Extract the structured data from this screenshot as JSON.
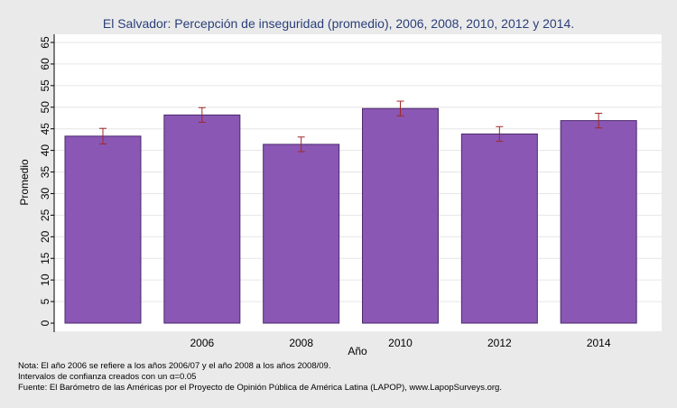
{
  "chart_data": {
    "type": "bar",
    "title": "El Salvador: Percepción de inseguridad (promedio), 2006, 2008, 2010, 2012 y 2014.",
    "xlabel": "Año",
    "ylabel": "Promedio",
    "categories": [
      "",
      "2006",
      "2008",
      "2010",
      "2012",
      "2014"
    ],
    "values": [
      43.3,
      48.2,
      41.4,
      49.7,
      43.8,
      46.9
    ],
    "ci_low": [
      41.5,
      46.5,
      39.7,
      48.0,
      42.1,
      45.2
    ],
    "ci_high": [
      45.1,
      49.9,
      43.1,
      51.4,
      45.5,
      48.6
    ],
    "ylim": [
      0,
      65
    ],
    "yticks": [
      0,
      5,
      10,
      15,
      20,
      25,
      30,
      35,
      40,
      45,
      50,
      55,
      60,
      65
    ],
    "grid": true,
    "legend": "none",
    "colors": {
      "bar_fill": "#8a57b4",
      "bar_stroke": "#4b2a6e",
      "error_bar": "#a02828",
      "plot_bg": "#ffffff",
      "page_bg": "#eaeaea",
      "title": "#2a3f7a"
    }
  },
  "notes": {
    "line1": "Nota: El año 2006 se refiere a los años 2006/07 y el año 2008 a los años 2008/09.",
    "line2": "Intervalos de confianza creados con un α=0.05",
    "line3": "Fuente: El Barómetro de las Américas por el Proyecto de Opinión Pública de América Latina (LAPOP), www.LapopSurveys.org."
  }
}
